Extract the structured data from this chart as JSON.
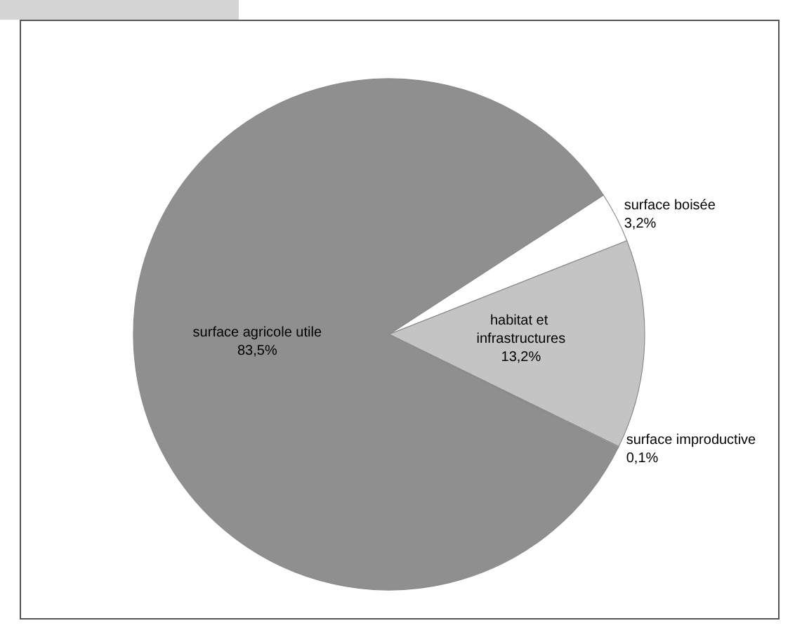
{
  "chart_data": {
    "type": "pie",
    "categories": [
      "surface boisée",
      "habitat et infrastructures",
      "surface improductive",
      "surface agricole utile"
    ],
    "values": [
      3.2,
      13.2,
      0.1,
      83.5
    ],
    "colors": [
      "#ffffff",
      "#c4c4c4",
      "#a0a0a0",
      "#8f8f8f"
    ],
    "value_labels": [
      "3,2%",
      "13,2%",
      "0,1%",
      "83,5%"
    ],
    "legend": false
  }
}
